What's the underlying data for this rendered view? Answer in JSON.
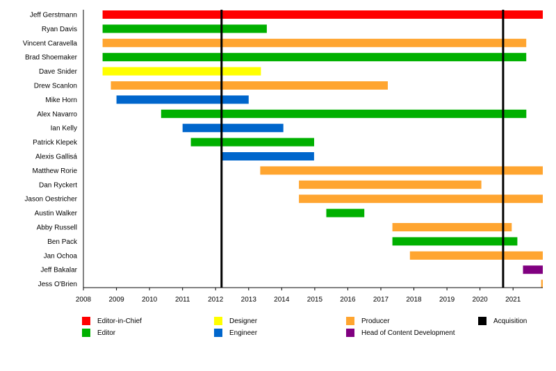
{
  "chart_data": {
    "type": "bar",
    "subtype": "timeline",
    "xlim": [
      2008,
      2021.9
    ],
    "x_ticks": [
      "2008",
      "2009",
      "2010",
      "2011",
      "2012",
      "2013",
      "2014",
      "2015",
      "2016",
      "2017",
      "2018",
      "2019",
      "2020",
      "2021"
    ],
    "roles": [
      {
        "name": "Editor-in-Chief",
        "color": "#ff0000"
      },
      {
        "name": "Designer",
        "color": "#ffff00"
      },
      {
        "name": "Producer",
        "color": "#ffa530"
      },
      {
        "name": "Acquisition",
        "color": "#000000"
      },
      {
        "name": "Editor",
        "color": "#00b000"
      },
      {
        "name": "Engineer",
        "color": "#0066cc"
      },
      {
        "name": "Head of Content Development",
        "color": "#800080"
      }
    ],
    "people": [
      {
        "name": "Jeff Gerstmann",
        "start": 2008.58,
        "end": 2021.9,
        "role": "Editor-in-Chief"
      },
      {
        "name": "Ryan Davis",
        "start": 2008.58,
        "end": 2013.55,
        "role": "Editor"
      },
      {
        "name": "Vincent Caravella",
        "start": 2008.58,
        "end": 2021.4,
        "role": "Producer"
      },
      {
        "name": "Brad Shoemaker",
        "start": 2008.58,
        "end": 2021.4,
        "role": "Editor"
      },
      {
        "name": "Dave Snider",
        "start": 2008.58,
        "end": 2013.37,
        "role": "Designer"
      },
      {
        "name": "Drew Scanlon",
        "start": 2008.83,
        "end": 2017.21,
        "role": "Producer"
      },
      {
        "name": "Mike Horn",
        "start": 2009.0,
        "end": 2013.0,
        "role": "Engineer"
      },
      {
        "name": "Alex Navarro",
        "start": 2010.35,
        "end": 2021.4,
        "role": "Editor"
      },
      {
        "name": "Ian Kelly",
        "start": 2011.0,
        "end": 2014.05,
        "role": "Engineer"
      },
      {
        "name": "Patrick Klepek",
        "start": 2011.25,
        "end": 2014.98,
        "role": "Editor"
      },
      {
        "name": "Alexis Gallisá",
        "start": 2012.17,
        "end": 2014.98,
        "role": "Engineer"
      },
      {
        "name": "Matthew Rorie",
        "start": 2013.35,
        "end": 2021.9,
        "role": "Producer"
      },
      {
        "name": "Dan Ryckert",
        "start": 2014.52,
        "end": 2020.04,
        "role": "Producer"
      },
      {
        "name": "Jason Oestricher",
        "start": 2014.52,
        "end": 2021.9,
        "role": "Producer"
      },
      {
        "name": "Austin Walker",
        "start": 2015.35,
        "end": 2016.5,
        "role": "Editor"
      },
      {
        "name": "Abby Russell",
        "start": 2017.35,
        "end": 2020.96,
        "role": "Producer"
      },
      {
        "name": "Ben Pack",
        "start": 2017.35,
        "end": 2021.13,
        "role": "Editor"
      },
      {
        "name": "Jan Ochoa",
        "start": 2017.88,
        "end": 2021.9,
        "role": "Producer"
      },
      {
        "name": "Jeff Bakalar",
        "start": 2021.3,
        "end": 2021.9,
        "role": "Head of Content Development"
      },
      {
        "name": "Jess O'Brien",
        "start": 2021.85,
        "end": 2021.9,
        "role": "Producer"
      }
    ],
    "acquisitions": [
      2012.18,
      2020.7
    ],
    "legend_placement": "bottom",
    "grid": false
  }
}
